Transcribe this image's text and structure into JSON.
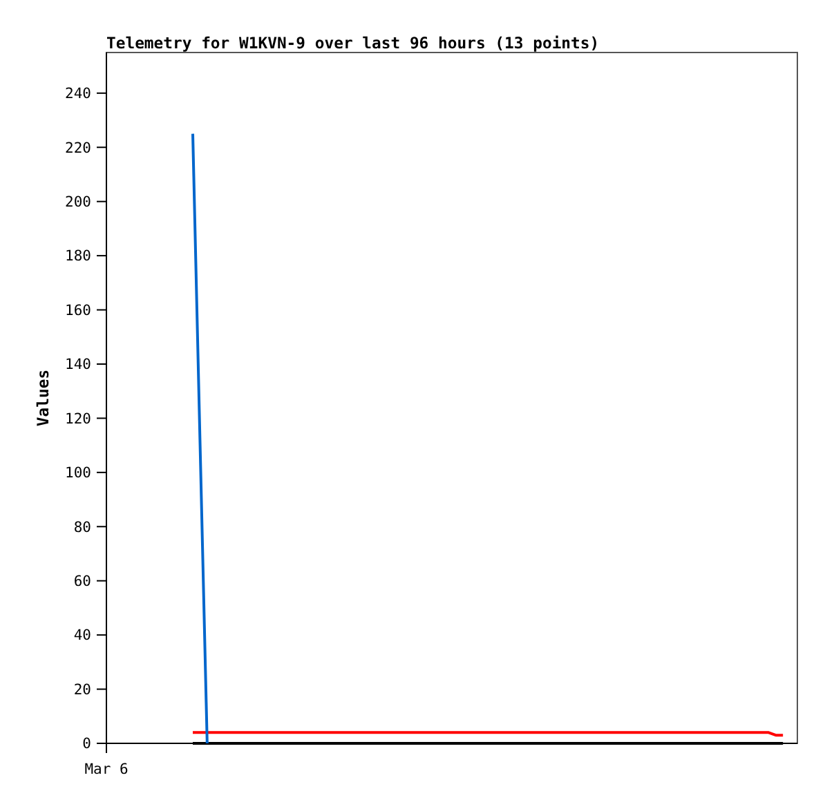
{
  "chart_data": {
    "type": "line",
    "title": "Telemetry for W1KVN-9 over last 96 hours (13 points)",
    "ylabel": "Values",
    "categories": [
      "Mar 6",
      null,
      null,
      null,
      null,
      null,
      null,
      null,
      null,
      null,
      null,
      null,
      null,
      null,
      null,
      null,
      null,
      null,
      null,
      null,
      null,
      null,
      null,
      null,
      null,
      null,
      null,
      null,
      null,
      null,
      null,
      null,
      null,
      null,
      null,
      null,
      null,
      null,
      null,
      null,
      null,
      null,
      null,
      null,
      null,
      null,
      null,
      null,
      null,
      null,
      null,
      null,
      null,
      null,
      null,
      null,
      null,
      null,
      null,
      null,
      null,
      null,
      null,
      null,
      null,
      null,
      null,
      null,
      null,
      null,
      null,
      null,
      null,
      null,
      null,
      null,
      null,
      null,
      null,
      null,
      null,
      null,
      null,
      null,
      null,
      null,
      null,
      null,
      null,
      null,
      null,
      null,
      null,
      null,
      null,
      null,
      null
    ],
    "ylim": [
      0,
      255
    ],
    "yticks": [
      0,
      20,
      40,
      60,
      80,
      100,
      120,
      140,
      160,
      180,
      200,
      220,
      240
    ],
    "series": [
      {
        "color": "#ff0000",
        "values": [
          null,
          null,
          null,
          null,
          null,
          null,
          null,
          null,
          null,
          null,
          null,
          null,
          4,
          4,
          4,
          4,
          4,
          4,
          4,
          4,
          4,
          4,
          4,
          4,
          4,
          4,
          4,
          4,
          4,
          4,
          4,
          4,
          4,
          4,
          4,
          4,
          4,
          4,
          4,
          4,
          4,
          4,
          4,
          4,
          4,
          4,
          4,
          4,
          4,
          4,
          4,
          4,
          4,
          4,
          4,
          4,
          4,
          4,
          4,
          4,
          4,
          4,
          4,
          4,
          4,
          4,
          4,
          4,
          4,
          4,
          4,
          4,
          4,
          4,
          4,
          4,
          4,
          4,
          4,
          4,
          4,
          4,
          4,
          4,
          4,
          4,
          4,
          4,
          4,
          4,
          4,
          4,
          4,
          3,
          3,
          null,
          null
        ]
      },
      {
        "color": "#000000",
        "values": [
          null,
          null,
          null,
          null,
          null,
          null,
          null,
          null,
          null,
          null,
          null,
          null,
          0,
          0,
          0,
          0,
          0,
          0,
          0,
          0,
          0,
          0,
          0,
          0,
          0,
          0,
          0,
          0,
          0,
          0,
          0,
          0,
          0,
          0,
          0,
          0,
          0,
          0,
          0,
          0,
          0,
          0,
          0,
          0,
          0,
          0,
          0,
          0,
          0,
          0,
          0,
          0,
          0,
          0,
          0,
          0,
          0,
          0,
          0,
          0,
          0,
          0,
          0,
          0,
          0,
          0,
          0,
          0,
          0,
          0,
          0,
          0,
          0,
          0,
          0,
          0,
          0,
          0,
          0,
          0,
          0,
          0,
          0,
          0,
          0,
          0,
          0,
          0,
          0,
          0,
          0,
          0,
          0,
          0,
          0,
          null,
          null
        ]
      },
      {
        "color": "#0066cc",
        "values": [
          null,
          null,
          null,
          null,
          null,
          null,
          null,
          null,
          null,
          null,
          null,
          null,
          225,
          112,
          0,
          null,
          null,
          null,
          null,
          null,
          null,
          null,
          null,
          null,
          null,
          null,
          null,
          null,
          null,
          null,
          null,
          null,
          null,
          null,
          null,
          null,
          null,
          null,
          null,
          null,
          null,
          null,
          null,
          null,
          null,
          null,
          null,
          null,
          null,
          null,
          null,
          null,
          null,
          null,
          null,
          null,
          null,
          null,
          null,
          null,
          null,
          null,
          null,
          null,
          null,
          null,
          null,
          null,
          null,
          null,
          null,
          null,
          null,
          null,
          null,
          null,
          null,
          null,
          null,
          null,
          null,
          null,
          null,
          null,
          null,
          null,
          null,
          null,
          null,
          null,
          null,
          null,
          null,
          null,
          null,
          null,
          null
        ]
      }
    ]
  }
}
